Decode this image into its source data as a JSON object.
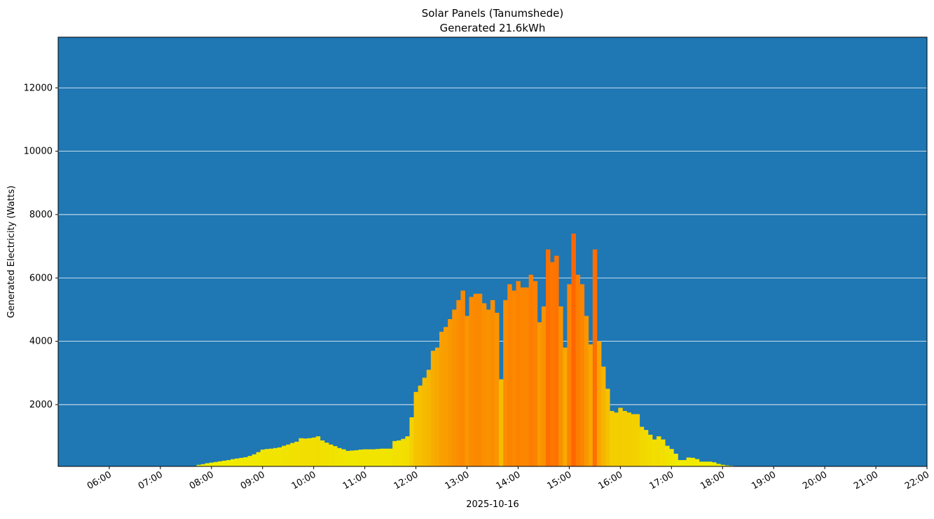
{
  "chart_data": {
    "type": "bar",
    "title": "Solar Panels (Tanumshede)",
    "subtitle": "Generated 21.6kWh",
    "xlabel": "2025-10-16",
    "ylabel": "Generated Electricity (Watts)",
    "xlim": [
      "05:00",
      "22:00"
    ],
    "ylim": [
      50,
      13600
    ],
    "grid": "horizontal",
    "background_color": "#1f77b4",
    "grid_color": "#ffffff",
    "color_low": "#f0f000",
    "color_high": "#ff6600",
    "y_ticks": [
      2000,
      4000,
      6000,
      8000,
      10000,
      12000
    ],
    "x_ticks": [
      "06:00",
      "07:00",
      "08:00",
      "09:00",
      "10:00",
      "11:00",
      "12:00",
      "13:00",
      "14:00",
      "15:00",
      "16:00",
      "17:00",
      "18:00",
      "19:00",
      "20:00",
      "21:00",
      "22:00"
    ],
    "bar_interval_minutes": 5,
    "x": [
      "07:45",
      "07:50",
      "07:55",
      "08:00",
      "08:05",
      "08:10",
      "08:15",
      "08:20",
      "08:25",
      "08:30",
      "08:35",
      "08:40",
      "08:45",
      "08:50",
      "08:55",
      "09:00",
      "09:05",
      "09:10",
      "09:15",
      "09:20",
      "09:25",
      "09:30",
      "09:35",
      "09:40",
      "09:45",
      "09:50",
      "09:55",
      "10:00",
      "10:05",
      "10:10",
      "10:15",
      "10:20",
      "10:25",
      "10:30",
      "10:35",
      "10:40",
      "10:45",
      "10:50",
      "10:55",
      "11:00",
      "11:05",
      "11:10",
      "11:15",
      "11:20",
      "11:25",
      "11:30",
      "11:35",
      "11:40",
      "11:45",
      "11:50",
      "11:55",
      "12:00",
      "12:05",
      "12:10",
      "12:15",
      "12:20",
      "12:25",
      "12:30",
      "12:35",
      "12:40",
      "12:45",
      "12:50",
      "12:55",
      "13:00",
      "13:05",
      "13:10",
      "13:15",
      "13:20",
      "13:25",
      "13:30",
      "13:35",
      "13:40",
      "13:45",
      "13:50",
      "13:55",
      "14:00",
      "14:05",
      "14:10",
      "14:15",
      "14:20",
      "14:25",
      "14:30",
      "14:35",
      "14:40",
      "14:45",
      "14:50",
      "14:55",
      "15:00",
      "15:05",
      "15:10",
      "15:15",
      "15:20",
      "15:25",
      "15:30",
      "15:35",
      "15:40",
      "15:45",
      "15:50",
      "15:55",
      "16:00",
      "16:05",
      "16:10",
      "16:15",
      "16:20",
      "16:25",
      "16:30",
      "16:35",
      "16:40",
      "16:45",
      "16:50",
      "16:55",
      "17:00",
      "17:05",
      "17:10",
      "17:15",
      "17:20",
      "17:25",
      "17:30",
      "17:35",
      "17:40",
      "17:45",
      "17:50",
      "17:55",
      "18:00",
      "18:05",
      "18:10",
      "18:15",
      "18:20",
      "18:25",
      "18:30",
      "18:35",
      "18:40",
      "18:45"
    ],
    "values": [
      100,
      120,
      150,
      170,
      190,
      210,
      230,
      250,
      280,
      300,
      320,
      340,
      380,
      430,
      500,
      580,
      600,
      610,
      630,
      650,
      700,
      740,
      790,
      830,
      940,
      930,
      940,
      960,
      1000,
      870,
      800,
      740,
      690,
      630,
      590,
      540,
      550,
      560,
      580,
      590,
      590,
      590,
      600,
      610,
      610,
      610,
      850,
      870,
      920,
      1000,
      1600,
      2400,
      2600,
      2850,
      3100,
      3700,
      3800,
      4300,
      4450,
      4700,
      5000,
      5300,
      5600,
      4800,
      5400,
      5500,
      5500,
      5200,
      5000,
      5300,
      4900,
      2800,
      5300,
      5800,
      5600,
      5900,
      5700,
      5700,
      6100,
      5900,
      4600,
      5100,
      6900,
      6500,
      6700,
      5100,
      3800,
      5800,
      7400,
      6100,
      5800,
      4800,
      3900,
      6900,
      4000,
      3200,
      2500,
      1800,
      1750,
      1900,
      1800,
      1750,
      1700,
      1700,
      1300,
      1200,
      1050,
      900,
      1000,
      900,
      700,
      600,
      450,
      250,
      250,
      330,
      320,
      280,
      200,
      200,
      200,
      180,
      130,
      100,
      80,
      70,
      60,
      50,
      50,
      40,
      40,
      40,
      30
    ]
  }
}
